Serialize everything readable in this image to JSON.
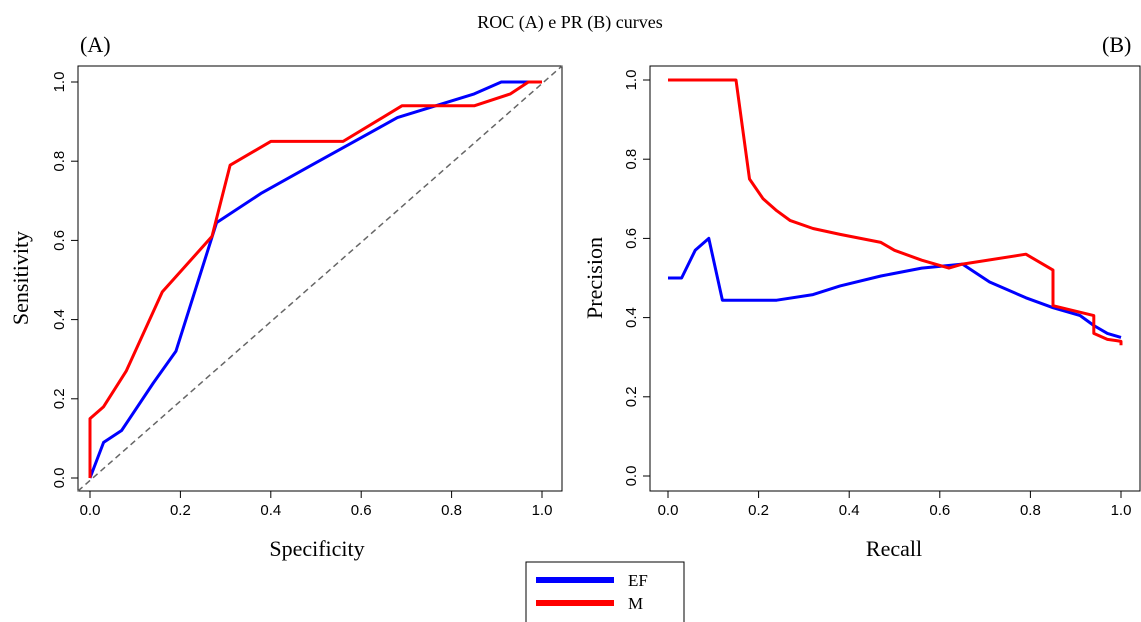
{
  "title": "ROC (A) e PR (B) curves",
  "colors": {
    "EF": "#0000ff",
    "M": "#ff0000",
    "diagonal": "#666666"
  },
  "legend": {
    "items": [
      {
        "label": "EF",
        "color": "#0000ff"
      },
      {
        "label": "M",
        "color": "#ff0000"
      }
    ]
  },
  "chart_data": [
    {
      "type": "line",
      "panel_label": "(A)",
      "xlabel": "Specificity",
      "ylabel": "Sensitivity",
      "xlim": [
        0,
        1
      ],
      "ylim": [
        0,
        1
      ],
      "xticks": [
        "0.0",
        "0.2",
        "0.4",
        "0.6",
        "0.8",
        "1.0"
      ],
      "yticks": [
        "0.0",
        "0.2",
        "0.4",
        "0.6",
        "0.8",
        "1.0"
      ],
      "reference_line": "dashed diagonal y = x",
      "series": [
        {
          "name": "EF",
          "color": "#0000ff",
          "x": [
            0.0,
            0.03,
            0.07,
            0.14,
            0.19,
            0.28,
            0.38,
            0.49,
            0.68,
            0.85,
            0.91,
            1.0
          ],
          "y": [
            0.0,
            0.09,
            0.12,
            0.24,
            0.32,
            0.645,
            0.72,
            0.79,
            0.91,
            0.97,
            1.0,
            1.0
          ]
        },
        {
          "name": "M",
          "color": "#ff0000",
          "x": [
            0.0,
            0.0,
            0.03,
            0.08,
            0.16,
            0.27,
            0.31,
            0.4,
            0.56,
            0.69,
            0.85,
            0.93,
            0.97,
            1.0
          ],
          "y": [
            0.0,
            0.15,
            0.18,
            0.27,
            0.47,
            0.61,
            0.79,
            0.85,
            0.85,
            0.94,
            0.94,
            0.97,
            1.0,
            1.0
          ]
        }
      ]
    },
    {
      "type": "line",
      "panel_label": "(B)",
      "xlabel": "Recall",
      "ylabel": "Precision",
      "xlim": [
        0,
        1
      ],
      "ylim": [
        0,
        1
      ],
      "xticks": [
        "0.0",
        "0.2",
        "0.4",
        "0.6",
        "0.8",
        "1.0"
      ],
      "yticks": [
        "0.0",
        "0.2",
        "0.4",
        "0.6",
        "0.8",
        "1.0"
      ],
      "series": [
        {
          "name": "EF",
          "color": "#0000ff",
          "x": [
            0.0,
            0.03,
            0.06,
            0.09,
            0.12,
            0.24,
            0.32,
            0.38,
            0.47,
            0.56,
            0.65,
            0.71,
            0.79,
            0.85,
            0.91,
            0.94,
            0.97,
            1.0
          ],
          "y": [
            0.5,
            0.5,
            0.57,
            0.6,
            0.444,
            0.444,
            0.458,
            0.48,
            0.505,
            0.525,
            0.535,
            0.49,
            0.45,
            0.425,
            0.405,
            0.38,
            0.36,
            0.35
          ]
        },
        {
          "name": "M",
          "color": "#ff0000",
          "x": [
            0.0,
            0.15,
            0.18,
            0.21,
            0.24,
            0.27,
            0.32,
            0.38,
            0.47,
            0.5,
            0.56,
            0.62,
            0.65,
            0.79,
            0.85,
            0.85,
            0.94,
            0.94,
            0.97,
            0.99,
            1.0,
            1.0
          ],
          "y": [
            1.0,
            1.0,
            0.75,
            0.7,
            0.67,
            0.645,
            0.625,
            0.61,
            0.59,
            0.57,
            0.545,
            0.525,
            0.535,
            0.56,
            0.52,
            0.43,
            0.405,
            0.36,
            0.345,
            0.342,
            0.34,
            0.33
          ]
        }
      ]
    }
  ]
}
